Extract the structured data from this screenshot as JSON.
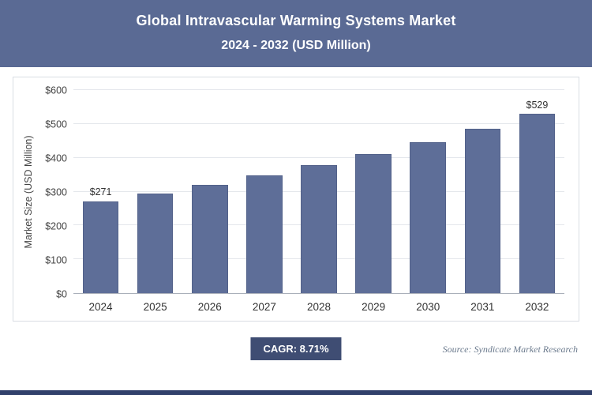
{
  "header": {
    "title_line1": "Global Intravascular Warming Systems Market",
    "title_line2": "2024 - 2032 (USD Million)"
  },
  "chart_data": {
    "type": "bar",
    "title": "Global Intravascular Warming Systems Market 2024 - 2032 (USD Million)",
    "categories": [
      "2024",
      "2025",
      "2026",
      "2027",
      "2028",
      "2029",
      "2030",
      "2031",
      "2032"
    ],
    "values": [
      271,
      295,
      320,
      348,
      378,
      411,
      447,
      486,
      529
    ],
    "bar_labels": [
      "$271",
      "",
      "",
      "",
      "",
      "",
      "",
      "",
      "$529"
    ],
    "xlabel": "",
    "ylabel": "Market Size (USD Million)",
    "ylim": [
      0,
      600
    ],
    "yticks": [
      "$0",
      "$100",
      "$200",
      "$300",
      "$400",
      "$500",
      "$600"
    ],
    "grid": true,
    "legend": "none",
    "bar_color": "#5e6e98"
  },
  "footer": {
    "cagr_label": "CAGR: 8.71%",
    "source": "Source: Syndicate Market Research"
  },
  "colors": {
    "header_bg": "#5a6a94",
    "bar": "#5e6e98",
    "badge_bg": "#3f4d73",
    "bottom_strip": "#31406b"
  }
}
